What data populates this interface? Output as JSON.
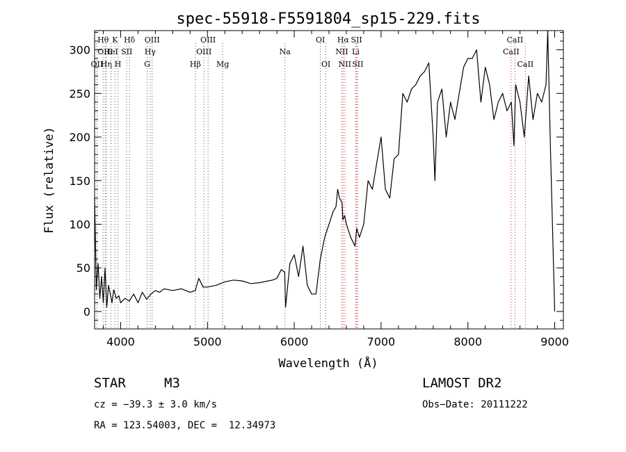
{
  "chart_data": {
    "type": "line",
    "title": "spec-55918-F5591804_sp15-229.fits",
    "xlabel": "Wavelength (Å)",
    "ylabel": "Flux (relative)",
    "xlim": [
      3700,
      9100
    ],
    "ylim": [
      -20,
      322
    ],
    "xticks": [
      4000,
      5000,
      6000,
      7000,
      8000,
      9000
    ],
    "yticks": [
      0,
      50,
      100,
      150,
      200,
      250,
      300
    ],
    "grid": false,
    "series": [
      {
        "x": [
          3700,
          3720,
          3740,
          3760,
          3780,
          3800,
          3820,
          3840,
          3860,
          3880,
          3900,
          3920,
          3950,
          3980,
          4000,
          4050,
          4100,
          4150,
          4200,
          4250,
          4300,
          4350,
          4400,
          4450,
          4500,
          4600,
          4700,
          4800,
          4860,
          4900,
          4950,
          5000,
          5100,
          5200,
          5300,
          5400,
          5500,
          5600,
          5700,
          5750,
          5800,
          5850,
          5890,
          5900,
          5950,
          6000,
          6050,
          6100,
          6150,
          6200,
          6250,
          6300,
          6350,
          6400,
          6450,
          6480,
          6500,
          6520,
          6550,
          6560,
          6580,
          6600,
          6650,
          6700,
          6720,
          6750,
          6800,
          6850,
          6900,
          6950,
          7000,
          7050,
          7100,
          7150,
          7200,
          7250,
          7300,
          7350,
          7400,
          7450,
          7500,
          7550,
          7600,
          7620,
          7650,
          7700,
          7750,
          7800,
          7850,
          7900,
          7950,
          8000,
          8050,
          8100,
          8150,
          8200,
          8250,
          8300,
          8350,
          8400,
          8450,
          8500,
          8530,
          8550,
          8600,
          8650,
          8700,
          8750,
          8800,
          8850,
          8900,
          8920,
          8950,
          9000
        ],
        "values": [
          130,
          25,
          55,
          15,
          40,
          10,
          50,
          5,
          30,
          20,
          10,
          25,
          15,
          18,
          10,
          15,
          12,
          20,
          10,
          22,
          14,
          20,
          24,
          22,
          26,
          24,
          26,
          22,
          24,
          38,
          28,
          28,
          30,
          34,
          36,
          35,
          32,
          33,
          35,
          36,
          38,
          48,
          45,
          5,
          55,
          65,
          40,
          75,
          30,
          20,
          20,
          60,
          85,
          100,
          115,
          120,
          140,
          130,
          125,
          105,
          110,
          100,
          85,
          75,
          95,
          85,
          100,
          150,
          140,
          170,
          200,
          140,
          130,
          175,
          180,
          250,
          240,
          255,
          260,
          270,
          275,
          285,
          200,
          150,
          240,
          255,
          200,
          240,
          220,
          250,
          280,
          290,
          290,
          300,
          240,
          280,
          260,
          220,
          240,
          250,
          230,
          240,
          190,
          260,
          240,
          200,
          270,
          220,
          250,
          240,
          260,
          322,
          190,
          0
        ]
      }
    ],
    "lines": [
      {
        "label": "OII",
        "x": 3727,
        "row": 2
      },
      {
        "label": "Hθ",
        "x": 3798,
        "row": 0
      },
      {
        "label": "OIII",
        "x": 3822,
        "row": 1
      },
      {
        "label": "Hη",
        "x": 3835,
        "row": 2
      },
      {
        "label": "K",
        "x": 3934,
        "row": 0
      },
      {
        "label": "HeI",
        "x": 3889,
        "row": 1
      },
      {
        "label": "H",
        "x": 3969,
        "row": 2
      },
      {
        "label": "SII",
        "x": 4070,
        "row": 1
      },
      {
        "label": "Hδ",
        "x": 4102,
        "row": 0
      },
      {
        "label": "OIII",
        "x": 4363,
        "row": 0
      },
      {
        "label": "Hγ",
        "x": 4340,
        "row": 1
      },
      {
        "label": "G",
        "x": 4305,
        "row": 2
      },
      {
        "label": "Hβ",
        "x": 4861,
        "row": 2
      },
      {
        "label": "OIII",
        "x": 4959,
        "row": 1
      },
      {
        "label": "OIII",
        "x": 5007,
        "row": 0
      },
      {
        "label": "Mg",
        "x": 5175,
        "row": 2
      },
      {
        "label": "Na",
        "x": 5893,
        "row": 1
      },
      {
        "label": "OI",
        "x": 6300,
        "row": 0
      },
      {
        "label": "OI",
        "x": 6364,
        "row": 2
      },
      {
        "label": "Hα",
        "x": 6563,
        "row": 0
      },
      {
        "label": "NII",
        "x": 6548,
        "row": 1
      },
      {
        "label": "NII",
        "x": 6583,
        "row": 2
      },
      {
        "label": "SII",
        "x": 6717,
        "row": 0
      },
      {
        "label": "Li",
        "x": 6708,
        "row": 1
      },
      {
        "label": "SII",
        "x": 6731,
        "row": 2
      },
      {
        "label": "CaII",
        "x": 8542,
        "row": 0
      },
      {
        "label": "CaII",
        "x": 8498,
        "row": 1
      },
      {
        "label": "CaII",
        "x": 8662,
        "row": 2
      }
    ]
  },
  "info": {
    "class": "STAR",
    "subclass": "M3",
    "survey": "LAMOST DR2",
    "cz": "cz = −39.3 ± 3.0 km/s",
    "obsdate": "Obs−Date: 20111222",
    "radec": "RA = 123.54003, DEC =  12.34973"
  }
}
